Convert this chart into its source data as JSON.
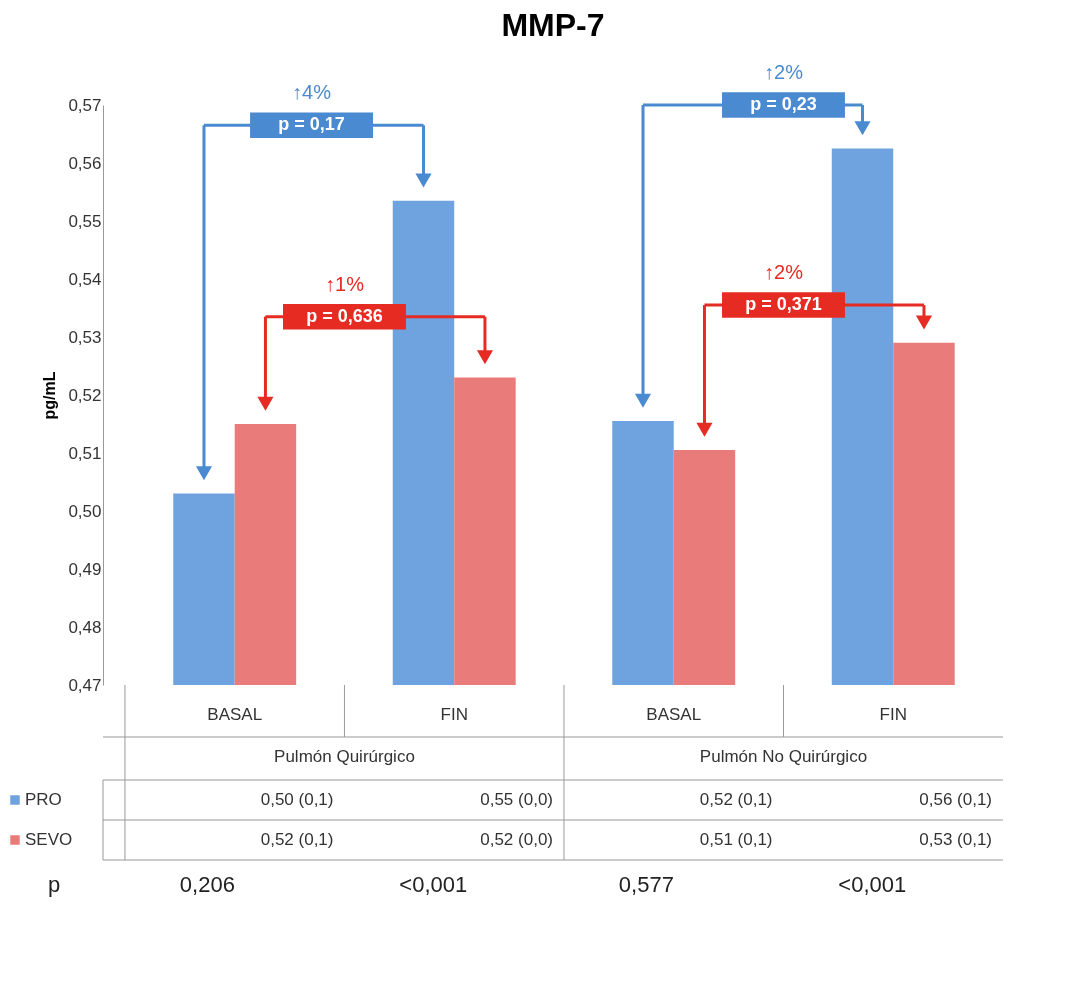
{
  "chart_data": {
    "type": "bar",
    "title": "MMP-7",
    "ylabel": "pg/mL",
    "categories": [
      "BASAL",
      "FIN",
      "BASAL",
      "FIN"
    ],
    "series": [
      {
        "name": "PRO",
        "color": "#6fa3e0",
        "values": [
          0.503,
          0.5535,
          0.5155,
          0.5625
        ],
        "value_labels": [
          "0,50 (0,1)",
          "0,55 (0,0)",
          "0,52 (0,1)",
          "0,56 (0,1)"
        ]
      },
      {
        "name": "SEVO",
        "color": "#ea7b7b",
        "values": [
          0.515,
          0.523,
          0.5105,
          0.529
        ],
        "value_labels": [
          "0,52 (0,1)",
          "0,52 (0,0)",
          "0,51 (0,1)",
          "0,53 (0,1)"
        ]
      }
    ],
    "ylim": [
      0.47,
      0.57
    ],
    "yticks": [
      {
        "value": 0.47,
        "label": "0,47"
      },
      {
        "value": 0.48,
        "label": "0,48"
      },
      {
        "value": 0.49,
        "label": "0,49"
      },
      {
        "value": 0.5,
        "label": "0,50"
      },
      {
        "value": 0.51,
        "label": "0,51"
      },
      {
        "value": 0.52,
        "label": "0,52"
      },
      {
        "value": 0.53,
        "label": "0,53"
      },
      {
        "value": 0.54,
        "label": "0,54"
      },
      {
        "value": 0.55,
        "label": "0,55"
      },
      {
        "value": 0.56,
        "label": "0,56"
      },
      {
        "value": 0.57,
        "label": "0,57"
      }
    ],
    "grid": false,
    "legend": "bottom left",
    "annotations": [
      "↑4%",
      "p = 0,17",
      "↑1%",
      "p = 0,636",
      "↑2%",
      "p = 0,23",
      "↑2%",
      "p = 0,371",
      "Pulmón Quirúrgico",
      "Pulmón No Quirúrgico",
      "p",
      "0,206",
      "<0,001",
      "0,577",
      "<0,001"
    ]
  }
}
